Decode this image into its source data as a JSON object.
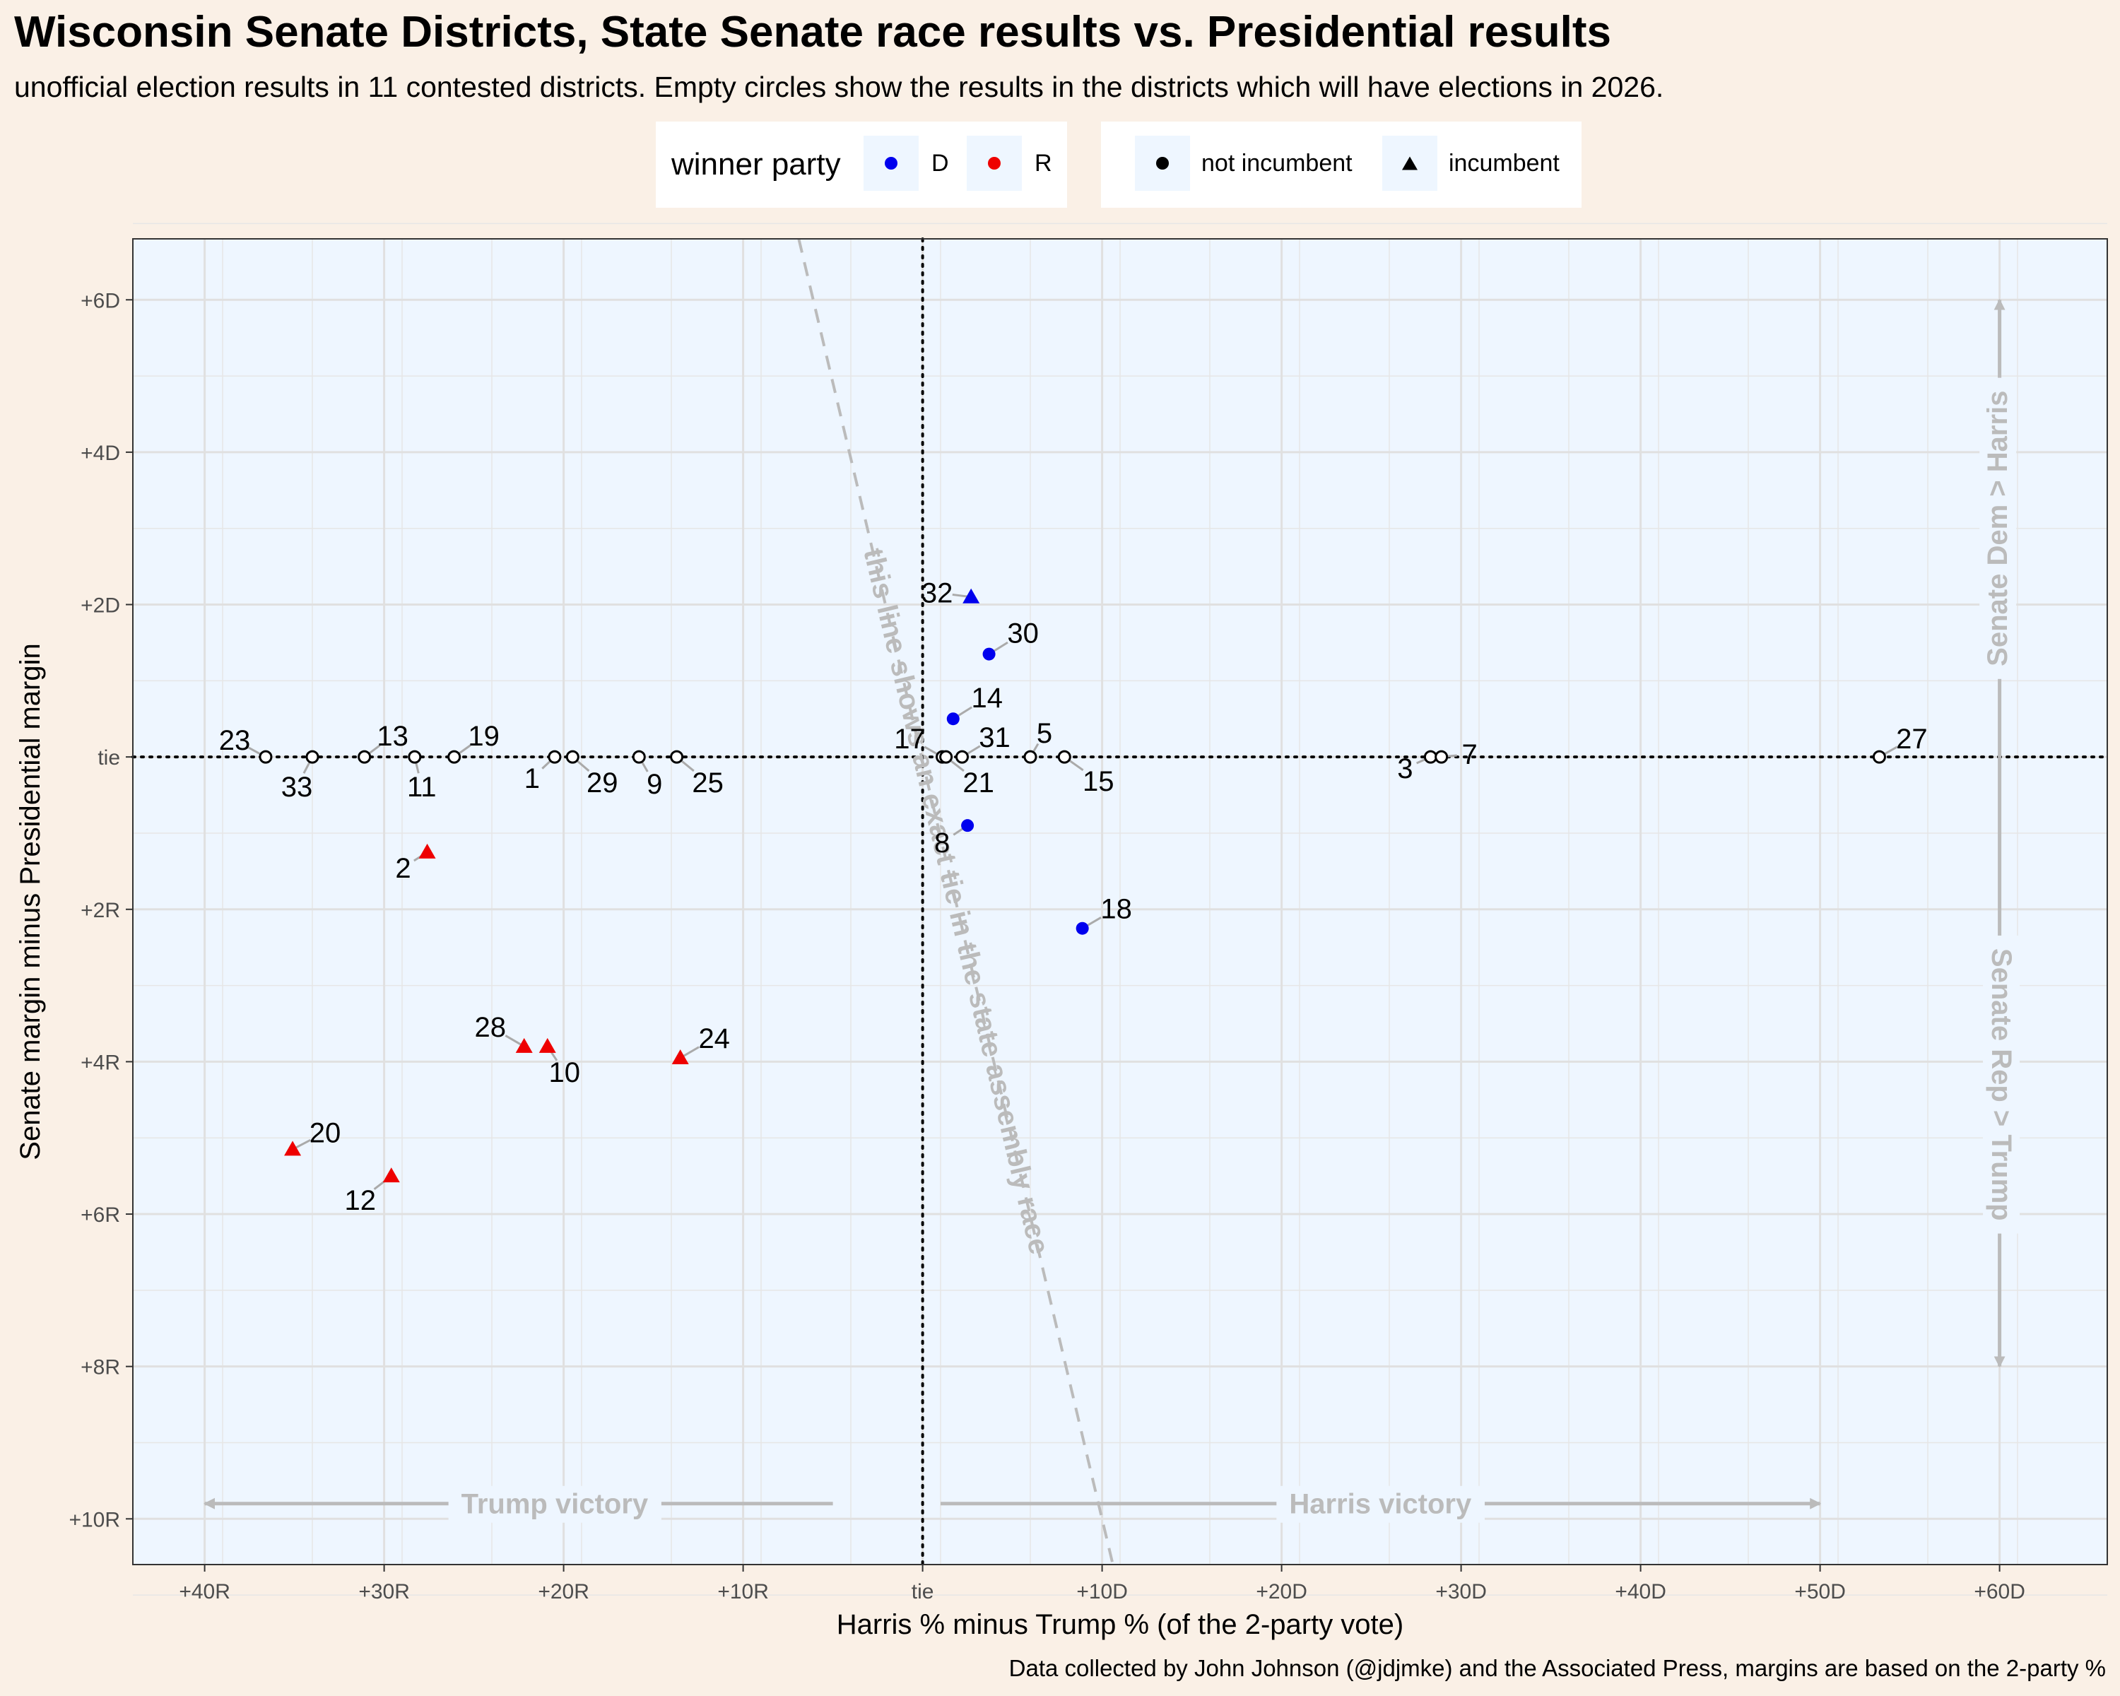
{
  "title": "Wisconsin Senate Districts, State Senate race results vs. Presidential results",
  "subtitle": "unofficial election results in 11 contested districts. Empty circles show the results in the districts which will have elections in 2026.",
  "caption": "Data collected by John Johnson (@jdjmke) and the Associated Press, margins are based on the 2-party %",
  "legend": {
    "party": {
      "title": "winner party",
      "items": [
        {
          "label": "D",
          "color": "#0000ee"
        },
        {
          "label": "R",
          "color": "#ee0000"
        }
      ]
    },
    "incumbent": {
      "items": [
        {
          "label": "not incumbent",
          "shape": "circle"
        },
        {
          "label": "incumbent",
          "shape": "triangle"
        }
      ]
    }
  },
  "colors": {
    "panel": "#eef6ff",
    "background": "#faf0e6",
    "D": "#0000ee",
    "R": "#ee0000",
    "annotation": "#bbbbbb"
  },
  "chart_data": {
    "type": "scatter",
    "xlabel": "Harris % minus Trump % (of the 2-party vote)",
    "ylabel": "Senate margin minus Presidential margin",
    "xlim": [
      -44,
      66
    ],
    "ylim": [
      -10.6,
      6.8
    ],
    "x_ticks": [
      {
        "value": -40,
        "label": "+40R"
      },
      {
        "value": -30,
        "label": "+30R"
      },
      {
        "value": -20,
        "label": "+20R"
      },
      {
        "value": -10,
        "label": "+10R"
      },
      {
        "value": 0,
        "label": "tie"
      },
      {
        "value": 10,
        "label": "+10D"
      },
      {
        "value": 20,
        "label": "+20D"
      },
      {
        "value": 30,
        "label": "+30D"
      },
      {
        "value": 40,
        "label": "+40D"
      },
      {
        "value": 50,
        "label": "+50D"
      },
      {
        "value": 60,
        "label": "+60D"
      }
    ],
    "y_ticks": [
      {
        "value": 6,
        "label": "+6D"
      },
      {
        "value": 4,
        "label": "+4D"
      },
      {
        "value": 2,
        "label": "+2D"
      },
      {
        "value": 0,
        "label": "tie"
      },
      {
        "value": -2,
        "label": "+2R"
      },
      {
        "value": -4,
        "label": "+4R"
      },
      {
        "value": -6,
        "label": "+6R"
      },
      {
        "value": -8,
        "label": "+8R"
      },
      {
        "value": -10,
        "label": "+10R"
      }
    ],
    "points": [
      {
        "district": "32",
        "x": 2.7,
        "y": 2.1,
        "party": "D",
        "incumbent": true,
        "contested": true
      },
      {
        "district": "30",
        "x": 3.7,
        "y": 1.35,
        "party": "D",
        "incumbent": false,
        "contested": true
      },
      {
        "district": "14",
        "x": 1.7,
        "y": 0.5,
        "party": "D",
        "incumbent": false,
        "contested": true
      },
      {
        "district": "8",
        "x": 2.5,
        "y": -0.9,
        "party": "D",
        "incumbent": false,
        "contested": true
      },
      {
        "district": "18",
        "x": 8.9,
        "y": -2.25,
        "party": "D",
        "incumbent": false,
        "contested": true
      },
      {
        "district": "2",
        "x": -27.6,
        "y": -1.25,
        "party": "R",
        "incumbent": true,
        "contested": true
      },
      {
        "district": "28",
        "x": -22.2,
        "y": -3.8,
        "party": "R",
        "incumbent": true,
        "contested": true
      },
      {
        "district": "10",
        "x": -20.9,
        "y": -3.8,
        "party": "R",
        "incumbent": true,
        "contested": true
      },
      {
        "district": "24",
        "x": -13.5,
        "y": -3.95,
        "party": "R",
        "incumbent": true,
        "contested": true
      },
      {
        "district": "20",
        "x": -35.1,
        "y": -5.15,
        "party": "R",
        "incumbent": true,
        "contested": true
      },
      {
        "district": "12",
        "x": -29.6,
        "y": -5.5,
        "party": "R",
        "incumbent": true,
        "contested": true
      },
      {
        "district": "23",
        "x": -36.6,
        "y": 0,
        "contested": false
      },
      {
        "district": "33",
        "x": -34.0,
        "y": 0,
        "contested": false
      },
      {
        "district": "13",
        "x": -31.1,
        "y": 0,
        "contested": false
      },
      {
        "district": "11",
        "x": -28.3,
        "y": 0,
        "contested": false
      },
      {
        "district": "19",
        "x": -26.1,
        "y": 0,
        "contested": false
      },
      {
        "district": "1",
        "x": -20.5,
        "y": 0,
        "contested": false
      },
      {
        "district": "29",
        "x": -19.5,
        "y": 0,
        "contested": false
      },
      {
        "district": "9",
        "x": -15.8,
        "y": 0,
        "contested": false
      },
      {
        "district": "25",
        "x": -13.7,
        "y": 0,
        "contested": false
      },
      {
        "district": "17",
        "x": 1.1,
        "y": 0,
        "contested": false
      },
      {
        "district": "31",
        "x": 2.2,
        "y": 0,
        "contested": false
      },
      {
        "district": "21",
        "x": 1.3,
        "y": 0,
        "contested": false
      },
      {
        "district": "5",
        "x": 6.0,
        "y": 0,
        "contested": false
      },
      {
        "district": "15",
        "x": 7.9,
        "y": 0,
        "contested": false
      },
      {
        "district": "3",
        "x": 28.3,
        "y": 0,
        "contested": false
      },
      {
        "district": "7",
        "x": 28.9,
        "y": 0,
        "contested": false
      },
      {
        "district": "27",
        "x": 53.3,
        "y": 0,
        "contested": false
      }
    ],
    "annotations": {
      "tie_line": "this line shows an exact tie in the state assembly race",
      "trump_victory": "Trump victory",
      "harris_victory": "Harris victory",
      "senate_dem": "Senate Dem > Harris",
      "senate_rep": "Senate Rep > Trump"
    }
  }
}
